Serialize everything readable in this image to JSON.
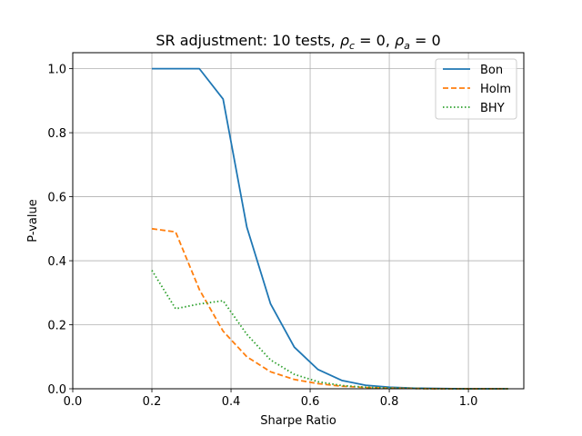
{
  "chart_data": {
    "type": "line",
    "title": {
      "prefix": "SR adjustment: 10 tests, ",
      "rho_c_label": "ρ",
      "rho_c_sub": "c",
      "rho_c_value": " = 0, ",
      "rho_a_label": "ρ",
      "rho_a_sub": "a",
      "rho_a_value": " = 0"
    },
    "xlabel": "Sharpe Ratio",
    "ylabel": "P-value",
    "xlim": [
      0.0,
      1.14
    ],
    "ylim": [
      0.0,
      1.05
    ],
    "xticks": [
      {
        "value": 0.0,
        "label": "0.0"
      },
      {
        "value": 0.2,
        "label": "0.2"
      },
      {
        "value": 0.4,
        "label": "0.4"
      },
      {
        "value": 0.6,
        "label": "0.6"
      },
      {
        "value": 0.8,
        "label": "0.8"
      },
      {
        "value": 1.0,
        "label": "1.0"
      }
    ],
    "yticks": [
      {
        "value": 0.0,
        "label": "0.0"
      },
      {
        "value": 0.2,
        "label": "0.2"
      },
      {
        "value": 0.4,
        "label": "0.4"
      },
      {
        "value": 0.6,
        "label": "0.6"
      },
      {
        "value": 0.8,
        "label": "0.8"
      },
      {
        "value": 1.0,
        "label": "1.0"
      }
    ],
    "grid": true,
    "legend_position": "top-right",
    "x": [
      0.2,
      0.26,
      0.32,
      0.38,
      0.44,
      0.5,
      0.56,
      0.62,
      0.68,
      0.74,
      0.8,
      0.86,
      0.92,
      0.98,
      1.04,
      1.1
    ],
    "series": [
      {
        "name": "Bon",
        "color": "#1f77b4",
        "dash": "solid",
        "values": [
          1.0,
          1.0,
          1.0,
          0.905,
          0.505,
          0.265,
          0.13,
          0.06,
          0.026,
          0.011,
          0.005,
          0.002,
          0.001,
          0.0,
          0.0,
          0.0
        ]
      },
      {
        "name": "Holm",
        "color": "#ff7f0e",
        "dash": "dashed",
        "values": [
          0.5,
          0.49,
          0.31,
          0.18,
          0.1,
          0.053,
          0.029,
          0.016,
          0.008,
          0.004,
          0.002,
          0.001,
          0.0,
          0.0,
          0.0,
          0.0
        ]
      },
      {
        "name": "BHY",
        "color": "#2ca02c",
        "dash": "dotted",
        "values": [
          0.37,
          0.25,
          0.265,
          0.275,
          0.17,
          0.09,
          0.045,
          0.022,
          0.01,
          0.005,
          0.002,
          0.001,
          0.0,
          0.0,
          0.0,
          0.0
        ]
      }
    ]
  }
}
